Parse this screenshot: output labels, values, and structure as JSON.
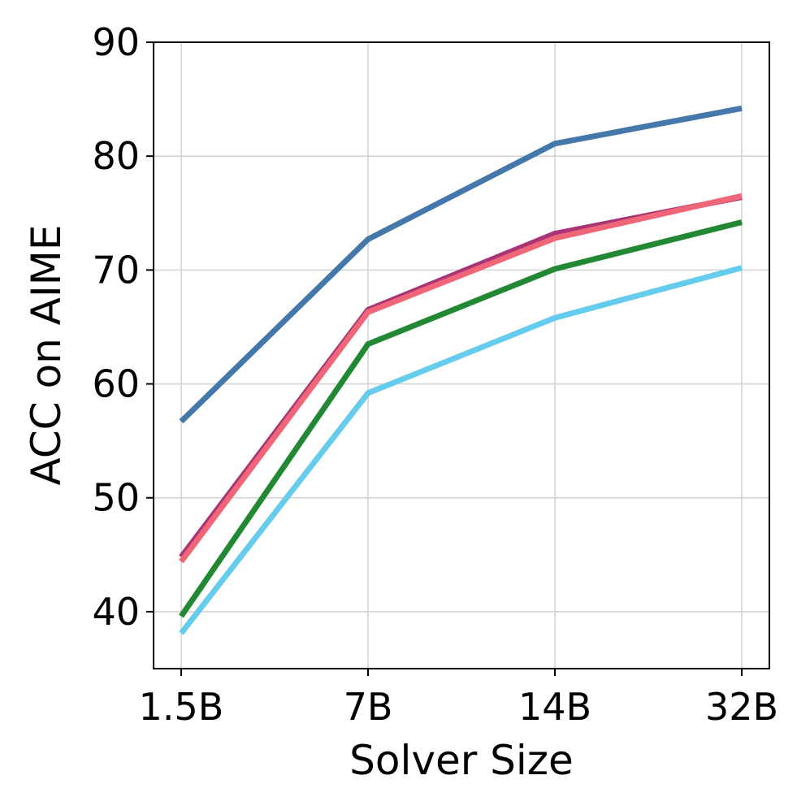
{
  "chart_data": {
    "type": "line",
    "title": "",
    "xlabel": "Solver Size",
    "ylabel": "ACC on AIME",
    "categories": [
      "1.5B",
      "7B",
      "14B",
      "32B"
    ],
    "ylim": [
      35,
      90
    ],
    "yticks": [
      40,
      50,
      60,
      70,
      80,
      90
    ],
    "grid": true,
    "legend": "none",
    "series": [
      {
        "color": "#4477aa",
        "values": [
          56.7,
          72.7,
          81.1,
          84.2
        ]
      },
      {
        "color": "#aa3377",
        "values": [
          44.8,
          66.5,
          73.2,
          76.4
        ]
      },
      {
        "color": "#ee6677",
        "values": [
          44.4,
          66.3,
          72.8,
          76.5
        ]
      },
      {
        "color": "#228833",
        "values": [
          39.6,
          63.5,
          70.1,
          74.2
        ]
      },
      {
        "color": "#66ccee",
        "values": [
          38.1,
          59.2,
          65.8,
          70.2
        ]
      }
    ]
  }
}
